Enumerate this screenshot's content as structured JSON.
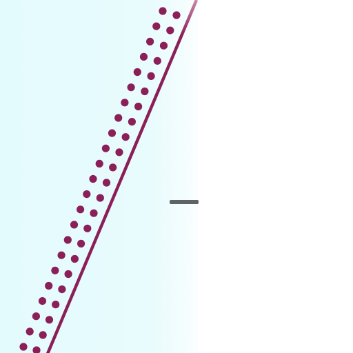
{
  "scene": {
    "description_kind": "cropped graphic",
    "colors": {
      "panel_tint": "#e6fbfe",
      "background": "#ffffff",
      "accent": "#8b1f58",
      "marker": "#5f6363"
    },
    "dot_rows": 2,
    "dots_per_row": 23
  }
}
